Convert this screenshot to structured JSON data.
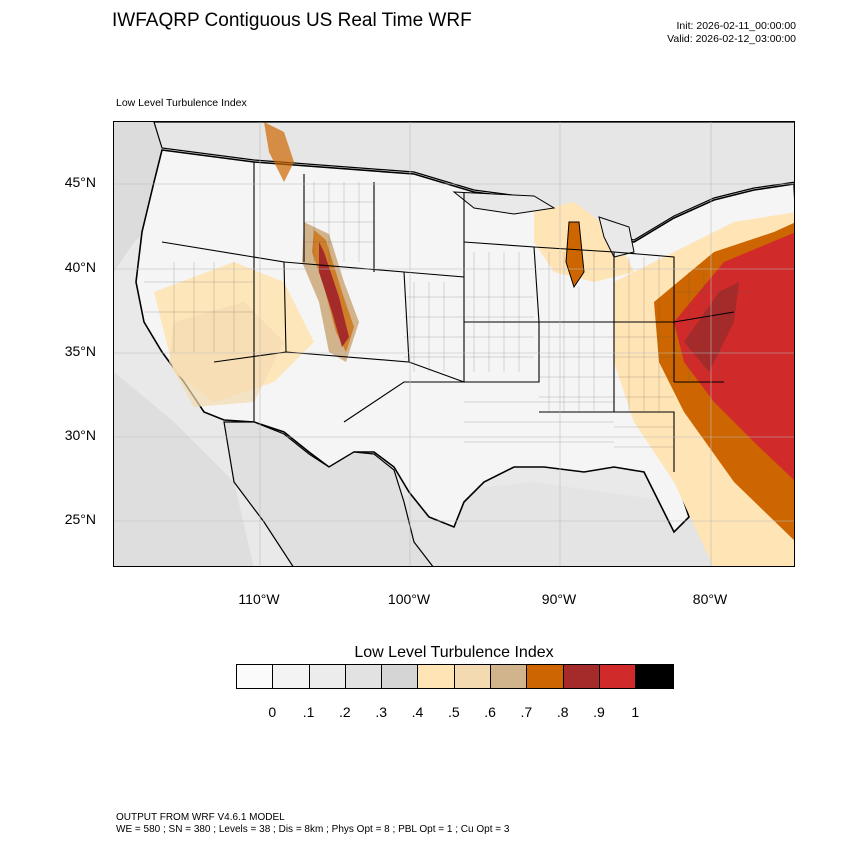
{
  "header": {
    "title": "IWFAQRP Contiguous US Real Time WRF",
    "init": "Init: 2026-02-11_00:00:00",
    "valid": "Valid: 2026-02-12_03:00:00"
  },
  "map": {
    "subtitle": "Low Level Turbulence Index",
    "lat_labels": [
      "45°N",
      "40°N",
      "35°N",
      "30°N",
      "25°N"
    ],
    "lon_labels": [
      "110°W",
      "100°W",
      "90°W",
      "80°W"
    ]
  },
  "legend": {
    "title": "Low Level Turbulence Index",
    "tick_labels": [
      "0",
      ".1",
      ".2",
      ".3",
      ".4",
      ".5",
      ".6",
      ".7",
      ".8",
      ".9",
      "1"
    ],
    "colors": [
      "#fbfbfb",
      "#f3f3f3",
      "#ececec",
      "#e2e2e2",
      "#d5d5d5",
      "#ffe4b5",
      "#f3dab0",
      "#d2b48c",
      "#cd6600",
      "#a52a2a",
      "#d12a2a",
      "#000000"
    ]
  },
  "footer": {
    "line1": "OUTPUT FROM WRF V4.6.1 MODEL",
    "line2": "WE = 580 ; SN = 380 ; Levels = 38 ; Dis = 8km ; Phys Opt = 8 ; PBL Opt = 1 ; Cu Opt = 3"
  }
}
